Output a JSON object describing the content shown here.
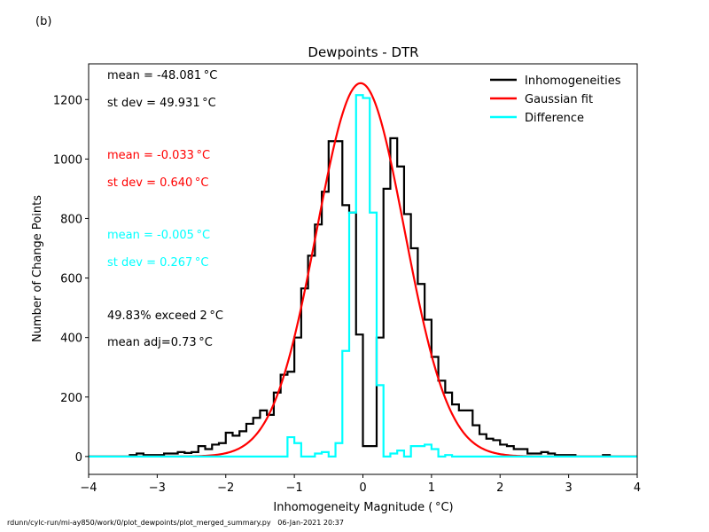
{
  "panel_label": "(b)",
  "footer": {
    "script_path": "rdunn/cylc-run/mi-ay850/work/0/plot_dewpoints/plot_merged_summary.py",
    "timestamp": "06-Jan-2021 20:37"
  },
  "colors": {
    "inhomogeneities": "#000000",
    "gaussian": "#ff0000",
    "difference": "#00ffff"
  },
  "annotations": [
    {
      "text": "mean = -48.081 °C",
      "color": "#000000"
    },
    {
      "text": "st dev = 49.931 °C",
      "color": "#000000"
    },
    {
      "text": "mean = -0.033 °C",
      "color": "#ff0000"
    },
    {
      "text": "st dev =  0.640 °C",
      "color": "#ff0000"
    },
    {
      "text": "mean = -0.005 °C",
      "color": "#00ffff"
    },
    {
      "text": "st dev =  0.267 °C",
      "color": "#00ffff"
    },
    {
      "text": "49.83% exceed 2 °C",
      "color": "#000000"
    },
    {
      "text": "mean adj=0.73 °C",
      "color": "#000000"
    }
  ],
  "chart_data": {
    "type": "histogram",
    "title": "Dewpoints - DTR",
    "xlabel": "Inhomogeneity Magnitude ( °C)",
    "ylabel": "Number of Change Points",
    "xlim": [
      -4,
      4
    ],
    "ylim": [
      -60,
      1320
    ],
    "xticks": [
      -4,
      -3,
      -2,
      -1,
      0,
      1,
      2,
      3,
      4
    ],
    "xtick_labels": [
      "−4",
      "−3",
      "−2",
      "−1",
      "0",
      "1",
      "2",
      "3",
      "4"
    ],
    "yticks": [
      0,
      200,
      400,
      600,
      800,
      1000,
      1200
    ],
    "ytick_labels": [
      "0",
      "200",
      "400",
      "600",
      "800",
      "1000",
      "1200"
    ],
    "grid": false,
    "legend_position": "top-right",
    "bin_edges_start": -4.0,
    "bin_width": 0.1,
    "series": [
      {
        "name": "Inhomogeneities",
        "kind": "step",
        "color": "#000000",
        "values": [
          0,
          0,
          0,
          0,
          0,
          0,
          5,
          10,
          5,
          5,
          5,
          10,
          10,
          15,
          12,
          15,
          35,
          25,
          40,
          45,
          80,
          70,
          85,
          110,
          130,
          155,
          140,
          215,
          275,
          285,
          400,
          565,
          675,
          780,
          890,
          1060,
          1060,
          845,
          820,
          410,
          35,
          35,
          400,
          900,
          1070,
          975,
          815,
          700,
          580,
          460,
          335,
          255,
          215,
          175,
          155,
          155,
          105,
          75,
          60,
          55,
          40,
          35,
          25,
          25,
          10,
          10,
          15,
          10,
          5,
          5,
          5,
          0,
          0,
          0,
          0,
          5,
          0,
          0,
          0,
          0
        ]
      },
      {
        "name": "Gaussian fit",
        "kind": "curve",
        "color": "#ff0000",
        "amplitude": 1255,
        "mean": -0.033,
        "stdev": 0.64
      },
      {
        "name": "Difference",
        "kind": "step",
        "color": "#00ffff",
        "values": [
          0,
          0,
          0,
          0,
          0,
          0,
          0,
          0,
          0,
          0,
          0,
          0,
          0,
          0,
          0,
          0,
          0,
          0,
          0,
          0,
          0,
          0,
          0,
          0,
          0,
          0,
          0,
          0,
          0,
          65,
          45,
          0,
          0,
          10,
          15,
          0,
          45,
          355,
          820,
          1215,
          1205,
          820,
          240,
          0,
          10,
          20,
          0,
          35,
          35,
          40,
          25,
          0,
          5,
          0,
          0,
          0,
          0,
          0,
          0,
          0,
          0,
          0,
          0,
          0,
          0,
          0,
          0,
          0,
          0,
          0,
          0,
          0,
          0,
          0,
          0,
          0,
          0,
          0,
          0,
          0
        ]
      }
    ]
  }
}
